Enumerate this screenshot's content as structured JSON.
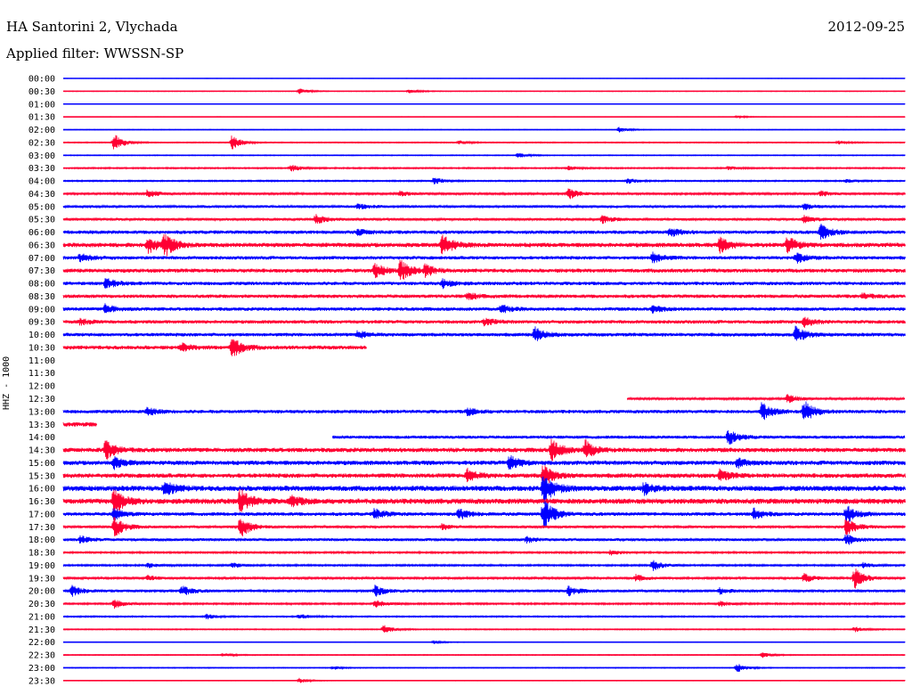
{
  "header": {
    "station": "HA Santorini 2, Vlychada",
    "filter": "Applied filter: WWSSN-SP",
    "date": "2012-09-25"
  },
  "chart_data": {
    "type": "line",
    "title": "HA Santorini 2, Vlychada",
    "subtitle": "Applied filter: WWSSN-SP",
    "date": "2012-09-25",
    "ylabel": "HHZ - 1000",
    "colors": {
      "even_hour": "#0000ff",
      "half_hour": "#ff0033"
    },
    "tick_labels": [
      "00:00",
      "00:30",
      "01:00",
      "01:30",
      "02:00",
      "02:30",
      "03:00",
      "03:30",
      "04:00",
      "04:30",
      "05:00",
      "05:30",
      "06:00",
      "06:30",
      "07:00",
      "07:30",
      "08:00",
      "08:30",
      "09:00",
      "09:30",
      "10:00",
      "10:30",
      "11:00",
      "11:30",
      "12:00",
      "12:30",
      "13:00",
      "13:30",
      "14:00",
      "14:30",
      "15:00",
      "15:30",
      "16:00",
      "16:30",
      "17:00",
      "17:30",
      "18:00",
      "18:30",
      "19:00",
      "19:30",
      "20:00",
      "20:30",
      "21:00",
      "21:30",
      "22:00",
      "22:30",
      "23:00",
      "23:30"
    ],
    "traces": [
      {
        "label": "00:00",
        "start": 0,
        "end": 1,
        "noise": 0.2,
        "events": []
      },
      {
        "label": "00:30",
        "start": 0,
        "end": 1,
        "noise": 0.4,
        "events": [
          [
            0.28,
            3
          ],
          [
            0.41,
            2.5
          ]
        ]
      },
      {
        "label": "01:00",
        "start": 0,
        "end": 1,
        "noise": 0.2,
        "events": []
      },
      {
        "label": "01:30",
        "start": 0,
        "end": 1,
        "noise": 0.3,
        "events": [
          [
            0.8,
            1.5
          ]
        ]
      },
      {
        "label": "02:00",
        "start": 0,
        "end": 1,
        "noise": 0.4,
        "events": [
          [
            0.66,
            3
          ]
        ]
      },
      {
        "label": "02:30",
        "start": 0,
        "end": 1,
        "noise": 0.6,
        "events": [
          [
            0.06,
            10
          ],
          [
            0.2,
            8
          ],
          [
            0.47,
            2
          ],
          [
            0.92,
            2
          ]
        ]
      },
      {
        "label": "03:00",
        "start": 0,
        "end": 1,
        "noise": 0.5,
        "events": [
          [
            0.54,
            3
          ]
        ]
      },
      {
        "label": "03:30",
        "start": 0,
        "end": 1,
        "noise": 0.8,
        "events": [
          [
            0.27,
            4
          ],
          [
            0.6,
            2
          ],
          [
            0.79,
            2
          ]
        ]
      },
      {
        "label": "04:00",
        "start": 0,
        "end": 1,
        "noise": 0.8,
        "events": [
          [
            0.44,
            4
          ],
          [
            0.67,
            3
          ],
          [
            0.93,
            2
          ]
        ]
      },
      {
        "label": "04:30",
        "start": 0,
        "end": 1,
        "noise": 1.2,
        "events": [
          [
            0.1,
            5
          ],
          [
            0.4,
            3
          ],
          [
            0.6,
            6
          ],
          [
            0.9,
            3
          ]
        ]
      },
      {
        "label": "05:00",
        "start": 0,
        "end": 1,
        "noise": 1.5,
        "events": [
          [
            0.35,
            3
          ],
          [
            0.88,
            3
          ]
        ]
      },
      {
        "label": "05:30",
        "start": 0,
        "end": 1,
        "noise": 1.5,
        "events": [
          [
            0.3,
            5
          ],
          [
            0.64,
            4
          ],
          [
            0.88,
            4
          ]
        ]
      },
      {
        "label": "06:00",
        "start": 0,
        "end": 1,
        "noise": 2,
        "events": [
          [
            0.35,
            3
          ],
          [
            0.72,
            5
          ],
          [
            0.9,
            8
          ]
        ]
      },
      {
        "label": "06:30",
        "start": 0,
        "end": 1,
        "noise": 2.5,
        "events": [
          [
            0.1,
            9
          ],
          [
            0.12,
            12
          ],
          [
            0.45,
            12
          ],
          [
            0.78,
            8
          ],
          [
            0.86,
            9
          ]
        ]
      },
      {
        "label": "07:00",
        "start": 0,
        "end": 1,
        "noise": 2,
        "events": [
          [
            0.02,
            5
          ],
          [
            0.7,
            6
          ],
          [
            0.87,
            6
          ]
        ]
      },
      {
        "label": "07:30",
        "start": 0,
        "end": 1,
        "noise": 2.2,
        "events": [
          [
            0.37,
            8
          ],
          [
            0.4,
            12
          ],
          [
            0.43,
            6
          ]
        ]
      },
      {
        "label": "08:00",
        "start": 0,
        "end": 1,
        "noise": 2,
        "events": [
          [
            0.05,
            6
          ],
          [
            0.45,
            5
          ]
        ]
      },
      {
        "label": "08:30",
        "start": 0,
        "end": 1,
        "noise": 2,
        "events": [
          [
            0.48,
            4
          ],
          [
            0.95,
            3
          ]
        ]
      },
      {
        "label": "09:00",
        "start": 0,
        "end": 1,
        "noise": 2,
        "events": [
          [
            0.05,
            5
          ],
          [
            0.52,
            5
          ],
          [
            0.7,
            4
          ]
        ]
      },
      {
        "label": "09:30",
        "start": 0,
        "end": 1,
        "noise": 2,
        "events": [
          [
            0.02,
            3
          ],
          [
            0.5,
            4
          ],
          [
            0.88,
            5
          ]
        ]
      },
      {
        "label": "10:00",
        "start": 0,
        "end": 1,
        "noise": 2,
        "events": [
          [
            0.35,
            4
          ],
          [
            0.56,
            8
          ],
          [
            0.87,
            9
          ]
        ]
      },
      {
        "label": "10:30",
        "start": 0,
        "end": 0.36,
        "noise": 2.2,
        "events": [
          [
            0.14,
            4
          ],
          [
            0.2,
            12
          ]
        ]
      },
      {
        "label": "11:00",
        "start": 0,
        "end": 0,
        "noise": 0,
        "events": []
      },
      {
        "label": "11:30",
        "start": 0,
        "end": 0,
        "noise": 0,
        "events": []
      },
      {
        "label": "12:00",
        "start": 0,
        "end": 0,
        "noise": 0,
        "events": []
      },
      {
        "label": "12:30",
        "start": 0.67,
        "end": 1,
        "noise": 1.2,
        "events": [
          [
            0.86,
            5
          ]
        ]
      },
      {
        "label": "13:00",
        "start": 0,
        "end": 1,
        "noise": 2,
        "events": [
          [
            0.1,
            4
          ],
          [
            0.48,
            4
          ],
          [
            0.83,
            10
          ],
          [
            0.88,
            12
          ]
        ]
      },
      {
        "label": "13:30",
        "start": 0,
        "end": 0.04,
        "noise": 2.5,
        "events": []
      },
      {
        "label": "14:00",
        "start": 0.32,
        "end": 1,
        "noise": 1.8,
        "events": [
          [
            0.79,
            8
          ]
        ]
      },
      {
        "label": "14:30",
        "start": 0,
        "end": 1,
        "noise": 2.5,
        "events": [
          [
            0.05,
            10
          ],
          [
            0.58,
            12
          ],
          [
            0.62,
            10
          ]
        ]
      },
      {
        "label": "15:00",
        "start": 0,
        "end": 1,
        "noise": 2.5,
        "events": [
          [
            0.06,
            6
          ],
          [
            0.53,
            8
          ],
          [
            0.8,
            5
          ]
        ]
      },
      {
        "label": "15:30",
        "start": 0,
        "end": 1,
        "noise": 2.5,
        "events": [
          [
            0.48,
            7
          ],
          [
            0.57,
            12
          ],
          [
            0.78,
            6
          ]
        ]
      },
      {
        "label": "16:00",
        "start": 0,
        "end": 1,
        "noise": 3,
        "events": [
          [
            0.12,
            8
          ],
          [
            0.57,
            18
          ],
          [
            0.69,
            6
          ]
        ]
      },
      {
        "label": "16:30",
        "start": 0,
        "end": 1,
        "noise": 3,
        "events": [
          [
            0.06,
            14
          ],
          [
            0.21,
            14
          ],
          [
            0.27,
            6
          ]
        ]
      },
      {
        "label": "17:00",
        "start": 0,
        "end": 1,
        "noise": 2,
        "events": [
          [
            0.06,
            6
          ],
          [
            0.37,
            6
          ],
          [
            0.47,
            6
          ],
          [
            0.57,
            18
          ],
          [
            0.82,
            6
          ],
          [
            0.93,
            10
          ]
        ]
      },
      {
        "label": "17:30",
        "start": 0,
        "end": 1,
        "noise": 1.5,
        "events": [
          [
            0.06,
            12
          ],
          [
            0.21,
            12
          ],
          [
            0.45,
            3
          ],
          [
            0.93,
            10
          ]
        ]
      },
      {
        "label": "18:00",
        "start": 0,
        "end": 1,
        "noise": 1.6,
        "events": [
          [
            0.02,
            4
          ],
          [
            0.55,
            3
          ],
          [
            0.93,
            6
          ]
        ]
      },
      {
        "label": "18:30",
        "start": 0,
        "end": 1,
        "noise": 1,
        "events": [
          [
            0.65,
            3
          ]
        ]
      },
      {
        "label": "19:00",
        "start": 0,
        "end": 1,
        "noise": 1,
        "events": [
          [
            0.1,
            3
          ],
          [
            0.2,
            3
          ],
          [
            0.7,
            6
          ],
          [
            0.95,
            3
          ]
        ]
      },
      {
        "label": "19:30",
        "start": 0,
        "end": 1,
        "noise": 1.2,
        "events": [
          [
            0.1,
            3
          ],
          [
            0.68,
            4
          ],
          [
            0.88,
            5
          ],
          [
            0.94,
            12
          ]
        ]
      },
      {
        "label": "20:00",
        "start": 0,
        "end": 1,
        "noise": 1.5,
        "events": [
          [
            0.01,
            6
          ],
          [
            0.14,
            6
          ],
          [
            0.37,
            6
          ],
          [
            0.6,
            5
          ],
          [
            0.78,
            3
          ]
        ]
      },
      {
        "label": "20:30",
        "start": 0,
        "end": 1,
        "noise": 1,
        "events": [
          [
            0.06,
            5
          ],
          [
            0.37,
            5
          ],
          [
            0.78,
            3
          ]
        ]
      },
      {
        "label": "21:00",
        "start": 0,
        "end": 1,
        "noise": 0.8,
        "events": [
          [
            0.17,
            3
          ],
          [
            0.28,
            3
          ]
        ]
      },
      {
        "label": "21:30",
        "start": 0,
        "end": 1,
        "noise": 0.6,
        "events": [
          [
            0.38,
            5
          ],
          [
            0.94,
            3
          ]
        ]
      },
      {
        "label": "22:00",
        "start": 0,
        "end": 1,
        "noise": 0.3,
        "events": [
          [
            0.44,
            2
          ]
        ]
      },
      {
        "label": "22:30",
        "start": 0,
        "end": 1,
        "noise": 0.5,
        "events": [
          [
            0.19,
            2
          ],
          [
            0.83,
            3
          ]
        ]
      },
      {
        "label": "23:00",
        "start": 0,
        "end": 1,
        "noise": 0.5,
        "events": [
          [
            0.32,
            2
          ],
          [
            0.8,
            5
          ]
        ]
      },
      {
        "label": "23:30",
        "start": 0,
        "end": 1,
        "noise": 0.3,
        "events": [
          [
            0.28,
            3
          ]
        ]
      }
    ]
  }
}
